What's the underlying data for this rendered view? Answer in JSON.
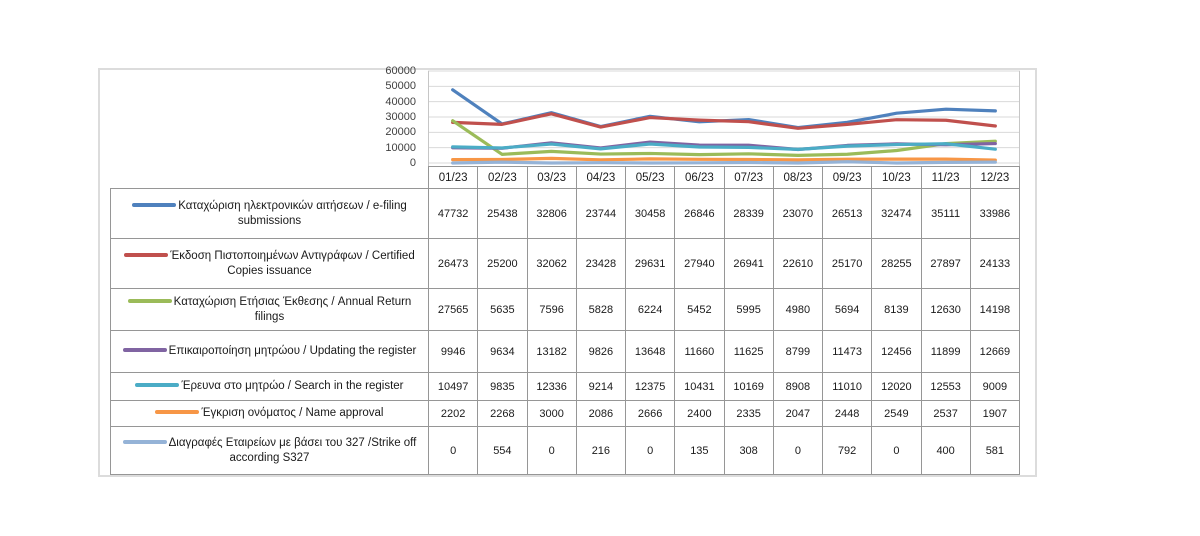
{
  "chart_data": {
    "type": "line",
    "title": "",
    "categories": [
      "01/23",
      "02/23",
      "03/23",
      "04/23",
      "05/23",
      "06/23",
      "07/23",
      "08/23",
      "09/23",
      "10/23",
      "11/23",
      "12/23"
    ],
    "series": [
      {
        "name": "Καταχώριση ηλεκτρονικών αιτήσεων / e-filing submissions",
        "color": "#4F81BD",
        "values": [
          47732,
          25438,
          32806,
          23744,
          30458,
          26846,
          28339,
          23070,
          26513,
          32474,
          35111,
          33986
        ]
      },
      {
        "name": "Έκδοση Πιστοποιημένων Αντιγράφων / Certified Copies issuance",
        "color": "#C0504D",
        "values": [
          26473,
          25200,
          32062,
          23428,
          29631,
          27940,
          26941,
          22610,
          25170,
          28255,
          27897,
          24133
        ]
      },
      {
        "name": "Καταχώριση Ετήσιας Έκθεσης / Annual Return filings",
        "color": "#9BBB59",
        "values": [
          27565,
          5635,
          7596,
          5828,
          6224,
          5452,
          5995,
          4980,
          5694,
          8139,
          12630,
          14198
        ]
      },
      {
        "name": "Επικαιροποίηση μητρώου / Updating the register",
        "color": "#8064A2",
        "values": [
          9946,
          9634,
          13182,
          9826,
          13648,
          11660,
          11625,
          8799,
          11473,
          12456,
          11899,
          12669
        ]
      },
      {
        "name": "Έρευνα στο μητρώο / Search in the register",
        "color": "#4BACC6",
        "values": [
          10497,
          9835,
          12336,
          9214,
          12375,
          10431,
          10169,
          8908,
          11010,
          12020,
          12553,
          9009
        ]
      },
      {
        "name": "Έγκριση ονόματος / Name approval",
        "color": "#F79646",
        "values": [
          2202,
          2268,
          3000,
          2086,
          2666,
          2400,
          2335,
          2047,
          2448,
          2549,
          2537,
          1907
        ]
      },
      {
        "name": "Διαγραφές Εταιρείων  με  βάσει του 327 /Strike off according S327",
        "color": "#95B3D7",
        "values": [
          0,
          554,
          0,
          216,
          0,
          135,
          308,
          0,
          792,
          0,
          400,
          581
        ]
      }
    ],
    "xlabel": "",
    "ylabel": "",
    "ylim": [
      0,
      60000
    ],
    "yticks": [
      0,
      10000,
      20000,
      30000,
      40000,
      50000,
      60000
    ],
    "grid": true,
    "legend_position": "left-of-data-table",
    "gridline_color": "#d9d9d9",
    "plot_border_color": "#c6c6c6",
    "table_border_color": "#969696"
  }
}
